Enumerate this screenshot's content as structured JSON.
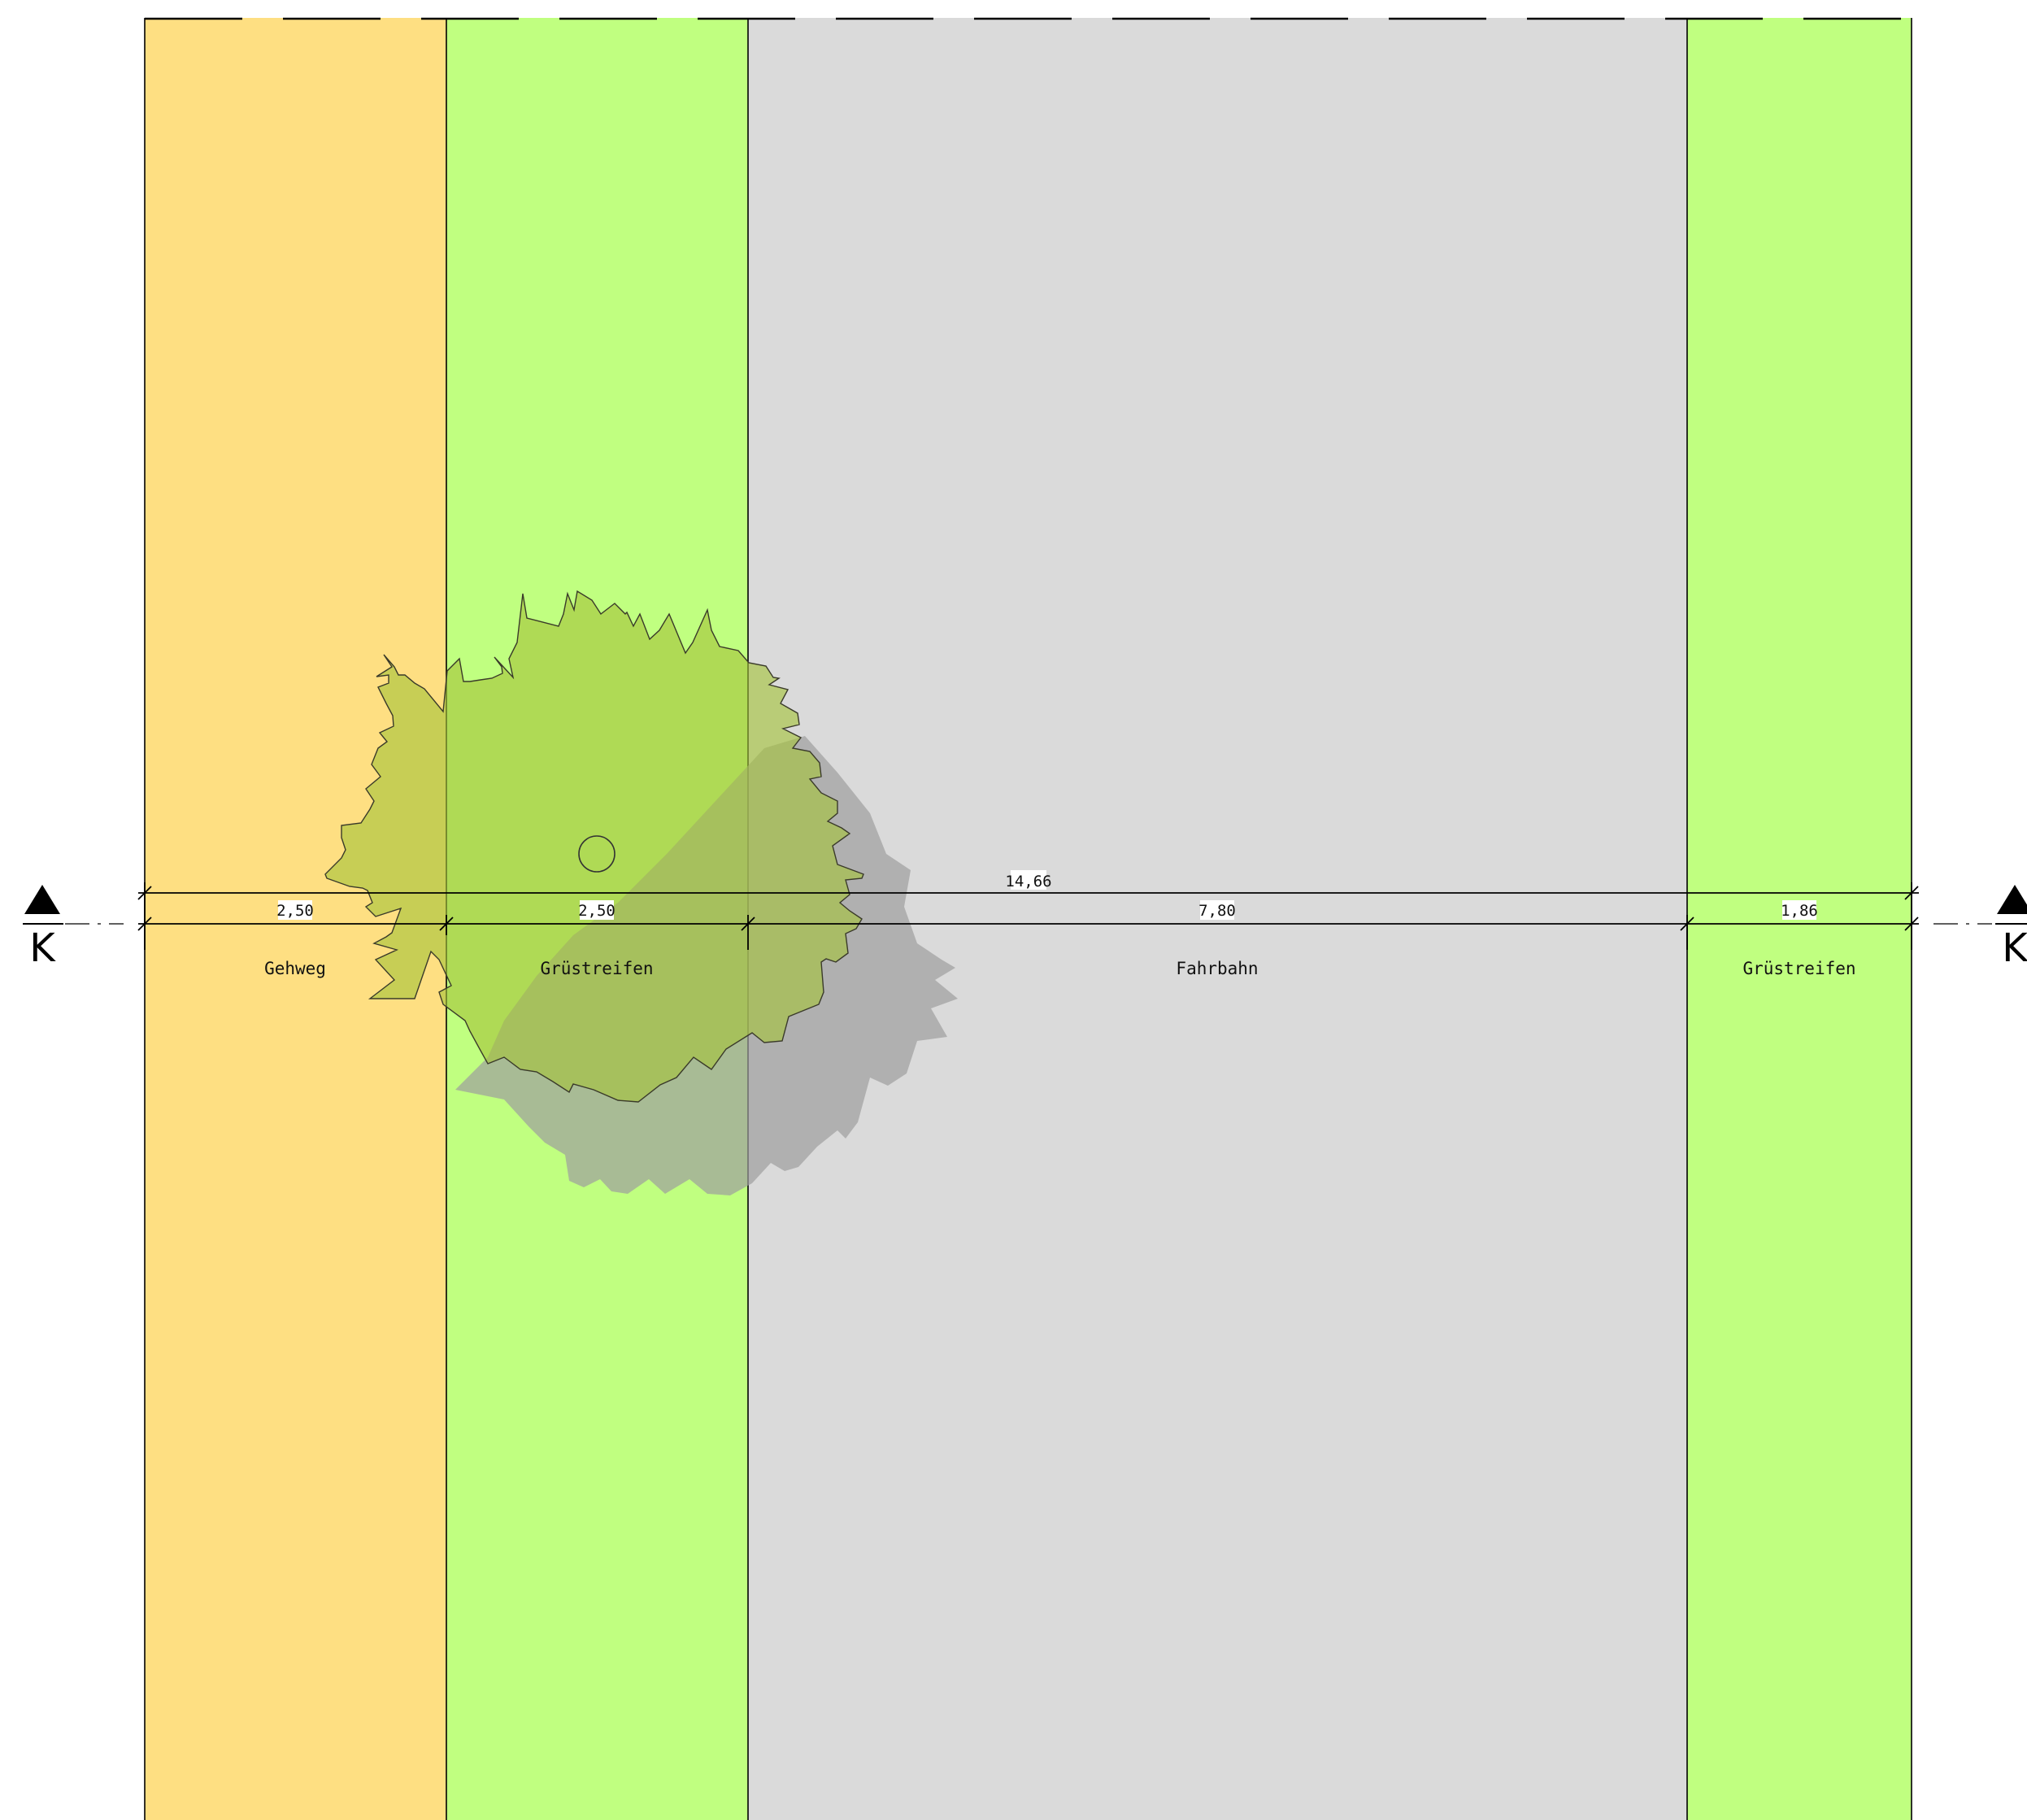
{
  "colors": {
    "gehweg": "#fedf82",
    "gruenstreifen": "#c0ff80",
    "fahrbahn": "#dadada",
    "tree_crown": "#a4c43a",
    "tree_shadow": "#9e9e9e",
    "line": "#000000"
  },
  "zones": [
    {
      "name": "Gehweg",
      "width": "2,50",
      "fill": "#fedf82"
    },
    {
      "name": "Grüstreifen",
      "width": "2,50",
      "fill": "#c0ff80"
    },
    {
      "name": "Fahrbahn",
      "width": "7,80",
      "fill": "#dadada"
    },
    {
      "name": "Grüstreifen",
      "width": "1,86",
      "fill": "#c0ff80"
    }
  ],
  "total_dimension": "14,66",
  "section_marker": {
    "left": "K",
    "right": "K"
  },
  "icons": {
    "tree": "tree-symbol-icon",
    "section_arrow": "section-arrow-icon"
  }
}
